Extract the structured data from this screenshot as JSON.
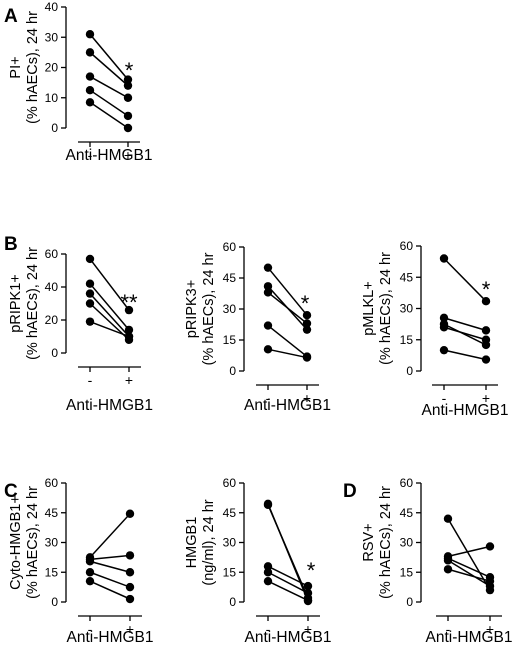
{
  "figure": {
    "panel_letters": [
      "A",
      "B",
      "C",
      "D"
    ]
  },
  "chart_data": [
    {
      "id": "pi",
      "panel": "A",
      "type": "line",
      "ylabel_lines": [
        "PI+",
        "(% hAECs), 24 hr"
      ],
      "xlabel": "Anti-HMGB1",
      "categories": [
        "-",
        "+"
      ],
      "ylim": [
        0,
        40
      ],
      "yticks": [
        0,
        10,
        20,
        30,
        40
      ],
      "pairs": [
        [
          31,
          16
        ],
        [
          25,
          14
        ],
        [
          17,
          10
        ],
        [
          12.5,
          4
        ],
        [
          8.5,
          0
        ]
      ],
      "significance": "*"
    },
    {
      "id": "pripk1",
      "panel": "B",
      "type": "line",
      "ylabel_lines": [
        "pRIPK1+",
        "(% hAECs), 24 hr"
      ],
      "xlabel": "Anti-HMGB1",
      "categories": [
        "-",
        "+"
      ],
      "ylim": [
        0,
        60
      ],
      "yticks": [
        0,
        20,
        40,
        60
      ],
      "pairs": [
        [
          57,
          26
        ],
        [
          42,
          14
        ],
        [
          36,
          10
        ],
        [
          30,
          8
        ],
        [
          19,
          10
        ]
      ],
      "significance": "**"
    },
    {
      "id": "pripk3",
      "panel": "B",
      "type": "line",
      "ylabel_lines": [
        "pRIPK3+",
        "(% hAECs), 24 hr"
      ],
      "xlabel": "Anti-HMGB1",
      "categories": [
        "-",
        "+"
      ],
      "ylim": [
        0,
        60
      ],
      "yticks": [
        0,
        15,
        30,
        45,
        60
      ],
      "pairs": [
        [
          50,
          27
        ],
        [
          41,
          20
        ],
        [
          38,
          23
        ],
        [
          22,
          7
        ],
        [
          10.5,
          6.5
        ]
      ],
      "significance": "*"
    },
    {
      "id": "pmlkl",
      "panel": "B",
      "type": "line",
      "ylabel_lines": [
        "pMLKL+",
        "(% hAECs), 24 hr"
      ],
      "xlabel": "Anti-HMGB1",
      "categories": [
        "-",
        "+"
      ],
      "ylim": [
        0,
        60
      ],
      "yticks": [
        0,
        15,
        30,
        45,
        60
      ],
      "pairs": [
        [
          54,
          33.5
        ],
        [
          25.5,
          19.5
        ],
        [
          22.5,
          12.5
        ],
        [
          21,
          15
        ],
        [
          10,
          5.5
        ]
      ],
      "significance": "*"
    },
    {
      "id": "cyto_hmgb1",
      "panel": "C",
      "type": "line",
      "ylabel_lines": [
        "Cyto-HMGB1+",
        "(% hAECs), 24 hr"
      ],
      "xlabel": "Anti-HMGB1",
      "categories": [
        "-",
        "+"
      ],
      "ylim": [
        0,
        60
      ],
      "yticks": [
        0,
        15,
        30,
        45,
        60
      ],
      "pairs": [
        [
          22.5,
          44.5
        ],
        [
          21.5,
          23.5
        ],
        [
          20.5,
          15
        ],
        [
          15,
          7.5
        ],
        [
          10.5,
          1.5
        ]
      ],
      "significance": ""
    },
    {
      "id": "hmgb1_ngml",
      "panel": "C",
      "type": "line",
      "ylabel_lines": [
        "HMGB1",
        "(ng/ml), 24 hr"
      ],
      "xlabel": "Anti-HMGB1",
      "categories": [
        "-",
        "+"
      ],
      "ylim": [
        0,
        60
      ],
      "yticks": [
        0,
        15,
        30,
        45,
        60
      ],
      "pairs": [
        [
          49.5,
          0.5
        ],
        [
          49,
          2
        ],
        [
          18,
          8
        ],
        [
          15,
          4.5
        ],
        [
          10.5,
          0.8
        ]
      ],
      "significance": "*"
    },
    {
      "id": "rsv",
      "panel": "D",
      "type": "line",
      "ylabel_lines": [
        "RSV+",
        "(% hAECs), 24 hr"
      ],
      "xlabel": "Anti-HMGB1",
      "categories": [
        "-",
        "+"
      ],
      "ylim": [
        0,
        60
      ],
      "yticks": [
        0,
        15,
        30,
        45,
        60
      ],
      "pairs": [
        [
          42,
          6
        ],
        [
          23,
          28
        ],
        [
          22,
          12.5
        ],
        [
          21,
          8
        ],
        [
          16.5,
          10.5
        ]
      ],
      "significance": ""
    }
  ]
}
